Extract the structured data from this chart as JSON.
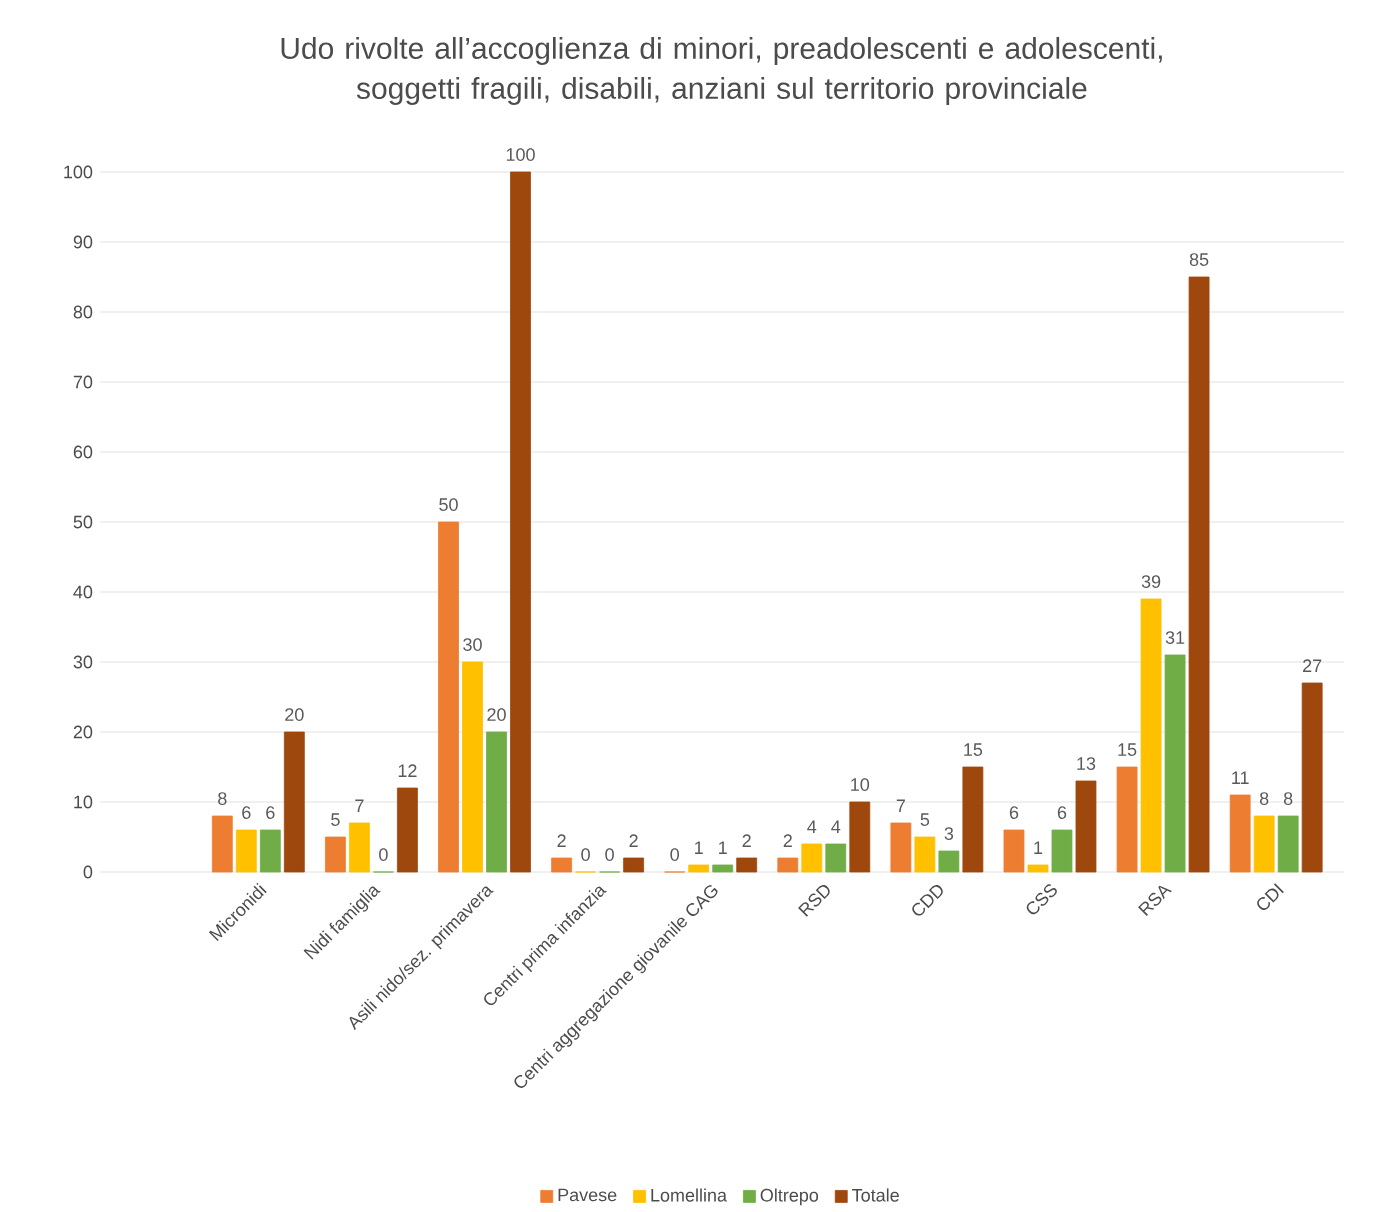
{
  "chart_data": {
    "type": "bar",
    "title": "Udo rivolte all’accoglienza di minori, preadolescenti e adolescenti, soggetti fragili, disabili, anziani sul territorio provinciale",
    "categories": [
      "Micronidi",
      "Nidi famiglia",
      "Asili nido/sez. primavera",
      "Centri prima infanzia",
      "Centri aggregazione giovanile CAG",
      "RSD",
      "CDD",
      "CSS",
      "RSA",
      "CDI"
    ],
    "series": [
      {
        "name": "Pavese",
        "color": "#ed7d31",
        "values": [
          8,
          5,
          50,
          2,
          0,
          2,
          7,
          6,
          15,
          11
        ]
      },
      {
        "name": "Lomellina",
        "color": "#ffc000",
        "values": [
          6,
          7,
          30,
          0,
          1,
          4,
          5,
          1,
          39,
          8
        ]
      },
      {
        "name": "Oltrepo",
        "color": "#70ad47",
        "values": [
          6,
          0,
          20,
          0,
          1,
          4,
          3,
          6,
          31,
          8
        ]
      },
      {
        "name": "Totale",
        "color": "#9e480e",
        "values": [
          20,
          12,
          100,
          2,
          2,
          10,
          15,
          13,
          85,
          27
        ]
      }
    ],
    "ylim": [
      0,
      100
    ],
    "yticks": [
      0,
      10,
      20,
      30,
      40,
      50,
      60,
      70,
      80,
      90,
      100
    ],
    "grid": "y",
    "legend": "bottom",
    "data_labels": true
  }
}
